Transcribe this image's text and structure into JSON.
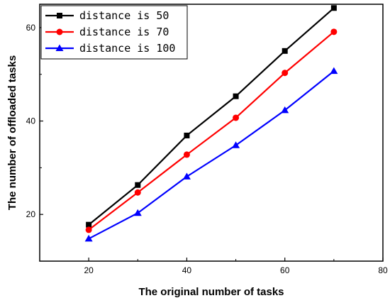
{
  "chart_data": {
    "type": "line",
    "title": "",
    "xlabel": "The original number of tasks",
    "ylabel": "The number of offloaded tasks",
    "xlim": [
      10,
      80
    ],
    "ylim": [
      10,
      65
    ],
    "xticks": [
      20,
      40,
      60,
      80
    ],
    "yticks": [
      20,
      40,
      60
    ],
    "x": [
      20,
      30,
      40,
      50,
      60,
      70
    ],
    "grid": false,
    "legend_position": "top-left",
    "series": [
      {
        "name": "distance is 50",
        "color": "#000000",
        "marker": "square",
        "values": [
          17.8,
          26.3,
          36.9,
          45.3,
          55.0,
          64.2
        ]
      },
      {
        "name": "distance is 70",
        "color": "#ff0000",
        "marker": "circle",
        "values": [
          16.7,
          24.7,
          32.8,
          40.7,
          50.3,
          59.1
        ]
      },
      {
        "name": "distance is 100",
        "color": "#0000ff",
        "marker": "triangle",
        "values": [
          14.8,
          20.3,
          28.1,
          34.8,
          42.3,
          50.7
        ]
      }
    ]
  }
}
